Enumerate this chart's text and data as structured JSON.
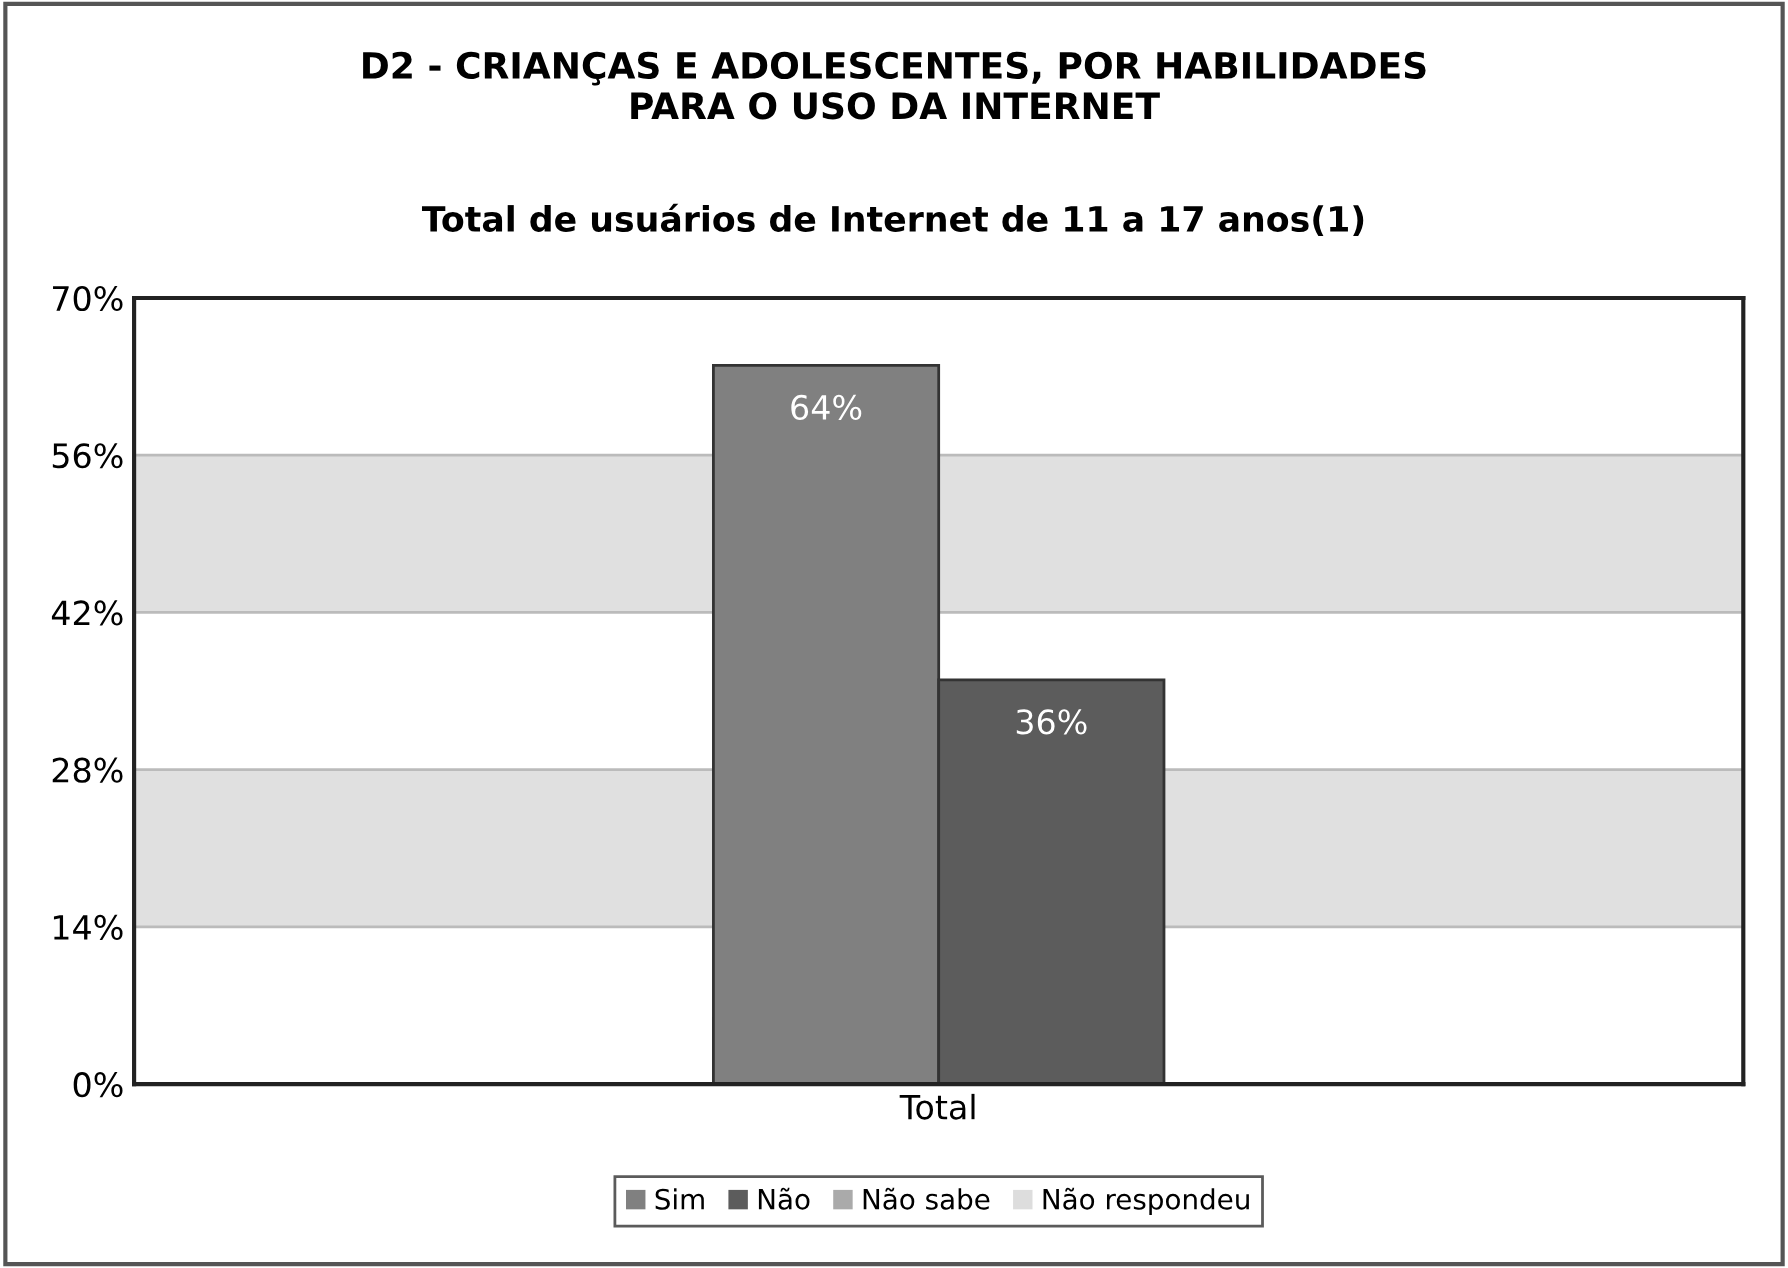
{
  "chart_data": {
    "type": "bar",
    "title": "D2 - CRIANÇAS E ADOLESCENTES, POR HABILIDADES\nPARA O USO DA INTERNET",
    "subtitle": "Total de usuários de Internet de 11 a 17 anos(1)",
    "categories": [
      "Total"
    ],
    "series": [
      {
        "name": "Sim",
        "color": "#808080",
        "values": [
          64
        ],
        "value_labels": [
          "64%"
        ]
      },
      {
        "name": "Não",
        "color": "#5c5c5c",
        "values": [
          36
        ],
        "value_labels": [
          "36%"
        ]
      },
      {
        "name": "Não sabe",
        "color": "#aaaaaa",
        "values": [
          null
        ],
        "value_labels": [
          null
        ]
      },
      {
        "name": "Não respondeu",
        "color": "#dddddd",
        "values": [
          null
        ],
        "value_labels": [
          null
        ]
      }
    ],
    "ylim": [
      0,
      70
    ],
    "yticks": [
      {
        "value": 0,
        "label": "0%"
      },
      {
        "value": 14,
        "label": "14%"
      },
      {
        "value": 28,
        "label": "28%"
      },
      {
        "value": 42,
        "label": "42%"
      },
      {
        "value": 56,
        "label": "56%"
      },
      {
        "value": 70,
        "label": "70%"
      }
    ],
    "grid": "y",
    "legend": "bottom"
  }
}
